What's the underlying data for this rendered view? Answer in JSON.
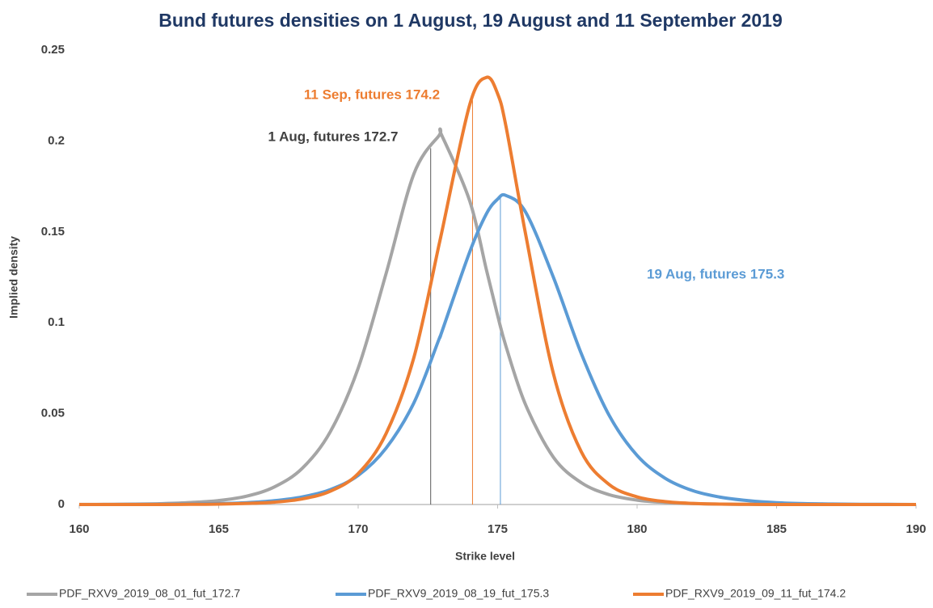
{
  "chart_data": {
    "type": "line",
    "title": "Bund futures densities on 1 August, 19 August and 11 September 2019",
    "x_label": "Strike level",
    "y_label": "Implied density",
    "x": [
      160,
      161,
      162,
      163,
      164,
      165,
      166,
      167,
      168,
      169,
      170,
      171,
      172,
      172.9,
      173,
      174,
      174.6,
      175,
      175.3,
      176,
      177,
      178,
      179,
      180,
      181,
      182,
      183,
      184,
      185,
      186,
      187,
      188,
      189,
      190
    ],
    "series": [
      {
        "name": "PDF_RXV9_2019_08_01_fut_172.7",
        "color": "#a5a5a5",
        "annotation": "1 Aug, futures 172.7",
        "annotation_color": "#404040",
        "marker_x": 172.6,
        "values": [
          5e-05,
          0.0001,
          0.0002,
          0.0005,
          0.0011,
          0.0022,
          0.0046,
          0.0097,
          0.02,
          0.04,
          0.075,
          0.127,
          0.182,
          0.203,
          0.203,
          0.167,
          0.129,
          0.104,
          0.087,
          0.055,
          0.026,
          0.012,
          0.0054,
          0.0024,
          0.0011,
          0.0005,
          0.0002,
          0.0001,
          0,
          0,
          0,
          0,
          0,
          0
        ]
      },
      {
        "name": "PDF_RXV9_2019_08_19_fut_175.3",
        "color": "#5b9bd5",
        "annotation": "19 Aug, futures 175.3",
        "annotation_color": "#5b9bd5",
        "marker_x": 175.1,
        "values": [
          0,
          0,
          0.0001,
          0.0001,
          0.0003,
          0.0005,
          0.001,
          0.0021,
          0.0042,
          0.0082,
          0.016,
          0.031,
          0.056,
          0.091,
          0.095,
          0.139,
          0.16,
          0.168,
          0.17,
          0.161,
          0.125,
          0.083,
          0.049,
          0.027,
          0.0145,
          0.0076,
          0.004,
          0.0021,
          0.001,
          0.0005,
          0.0003,
          0.0001,
          0.0001,
          0
        ]
      },
      {
        "name": "PDF_RXV9_2019_09_11_fut_174.2",
        "color": "#ed7d31",
        "annotation": "11 Sep, futures 174.2",
        "annotation_color": "#ed7d31",
        "marker_x": 174.1,
        "values": [
          0,
          0,
          0,
          0,
          0.0001,
          0.0002,
          0.0006,
          0.0013,
          0.0031,
          0.0073,
          0.017,
          0.039,
          0.081,
          0.143,
          0.15,
          0.22,
          0.235,
          0.226,
          0.208,
          0.149,
          0.072,
          0.029,
          0.011,
          0.0042,
          0.0016,
          0.0006,
          0.0002,
          0.0001,
          0,
          0,
          0,
          0,
          0,
          0
        ]
      }
    ],
    "xlim": [
      160,
      190
    ],
    "xticks": [
      160,
      165,
      170,
      175,
      180,
      185,
      190
    ],
    "ylim": [
      0,
      0.25
    ],
    "yticks": [
      0,
      0.05,
      0.1,
      0.15,
      0.2,
      0.25
    ],
    "grid": false,
    "legend": "bottom"
  }
}
